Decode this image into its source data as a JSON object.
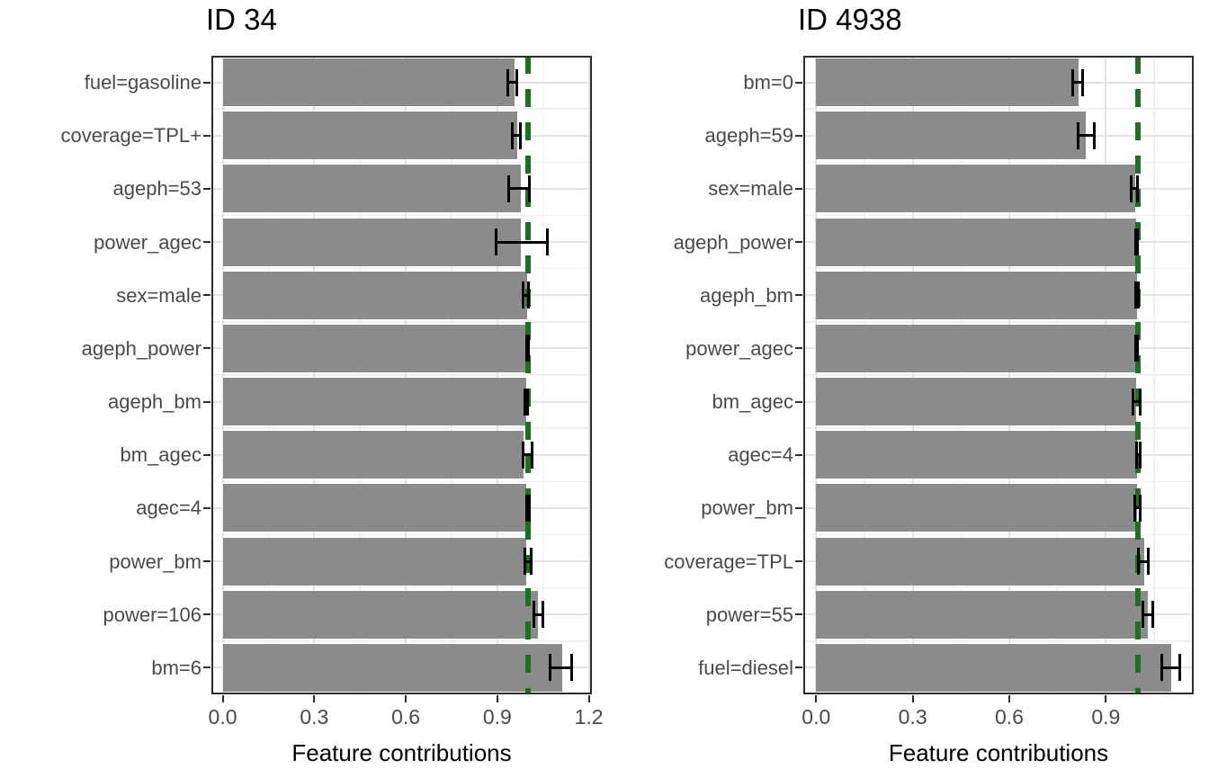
{
  "figure": {
    "background": "#ffffff",
    "bar_color": "#8b8b8b",
    "error_bar_color": "#000000",
    "grid_major_color": "#e3e3e3",
    "grid_minor_color": "#efefef",
    "panel_border_color": "#2e2e2e",
    "axis_text_color": "#4a4a4a",
    "title_color": "#000000",
    "reference_line_color": "#1d701d"
  },
  "chart_data": [
    {
      "type": "bar",
      "orientation": "horizontal",
      "title": "ID 34",
      "xlabel": "Feature contributions",
      "xlim": [
        -0.037,
        1.21
      ],
      "x_ticks": [
        0.0,
        0.3,
        0.6,
        0.9,
        1.2
      ],
      "x_tick_labels": [
        "0.0",
        "0.3",
        "0.6",
        "0.9",
        "1.2"
      ],
      "x_minor_ticks": [
        0.15,
        0.45,
        0.75,
        1.05
      ],
      "reference_line": 1.0,
      "grid": true,
      "legend": "none",
      "categories": [
        "fuel=gasoline",
        "coverage=TPL+",
        "ageph=53",
        "power_agec",
        "sex=male",
        "ageph_power",
        "ageph_bm",
        "bm_agec",
        "agec=4",
        "power_bm",
        "power=106",
        "bm=6"
      ],
      "values": [
        0.957,
        0.965,
        0.976,
        0.978,
        0.998,
        0.998,
        0.996,
        0.986,
        0.996,
        0.994,
        1.033,
        1.112
      ],
      "error_low": [
        0.934,
        0.949,
        0.936,
        0.896,
        0.985,
        0.995,
        0.991,
        0.985,
        0.996,
        0.991,
        1.019,
        1.072
      ],
      "error_high": [
        0.965,
        0.976,
        1.006,
        1.063,
        1.003,
        1.001,
        0.999,
        1.014,
        1.006,
        1.011,
        1.048,
        1.143
      ]
    },
    {
      "type": "bar",
      "orientation": "horizontal",
      "title": "ID 4938",
      "xlabel": "Feature contributions",
      "xlim": [
        -0.04,
        1.173
      ],
      "x_ticks": [
        0.0,
        0.3,
        0.6,
        0.9
      ],
      "x_tick_labels": [
        "0.0",
        "0.3",
        "0.6",
        "0.9"
      ],
      "x_minor_ticks": [
        0.15,
        0.45,
        0.75,
        1.05
      ],
      "reference_line": 1.0,
      "grid": true,
      "legend": "none",
      "categories": [
        "bm=0",
        "ageph=59",
        "sex=male",
        "ageph_power",
        "ageph_bm",
        "power_agec",
        "bm_agec",
        "agec=4",
        "power_bm",
        "coverage=TPL",
        "power=55",
        "fuel=diesel"
      ],
      "values": [
        0.815,
        0.839,
        0.992,
        0.995,
        0.997,
        0.995,
        0.995,
        0.998,
        0.998,
        1.018,
        1.03,
        1.102
      ],
      "error_low": [
        0.798,
        0.813,
        0.979,
        0.992,
        0.992,
        0.992,
        0.984,
        0.996,
        0.991,
        1.002,
        1.015,
        1.073
      ],
      "error_high": [
        0.829,
        0.863,
        0.997,
        0.999,
        1.001,
        0.999,
        1.006,
        1.007,
        1.008,
        1.031,
        1.047,
        1.131
      ]
    }
  ]
}
